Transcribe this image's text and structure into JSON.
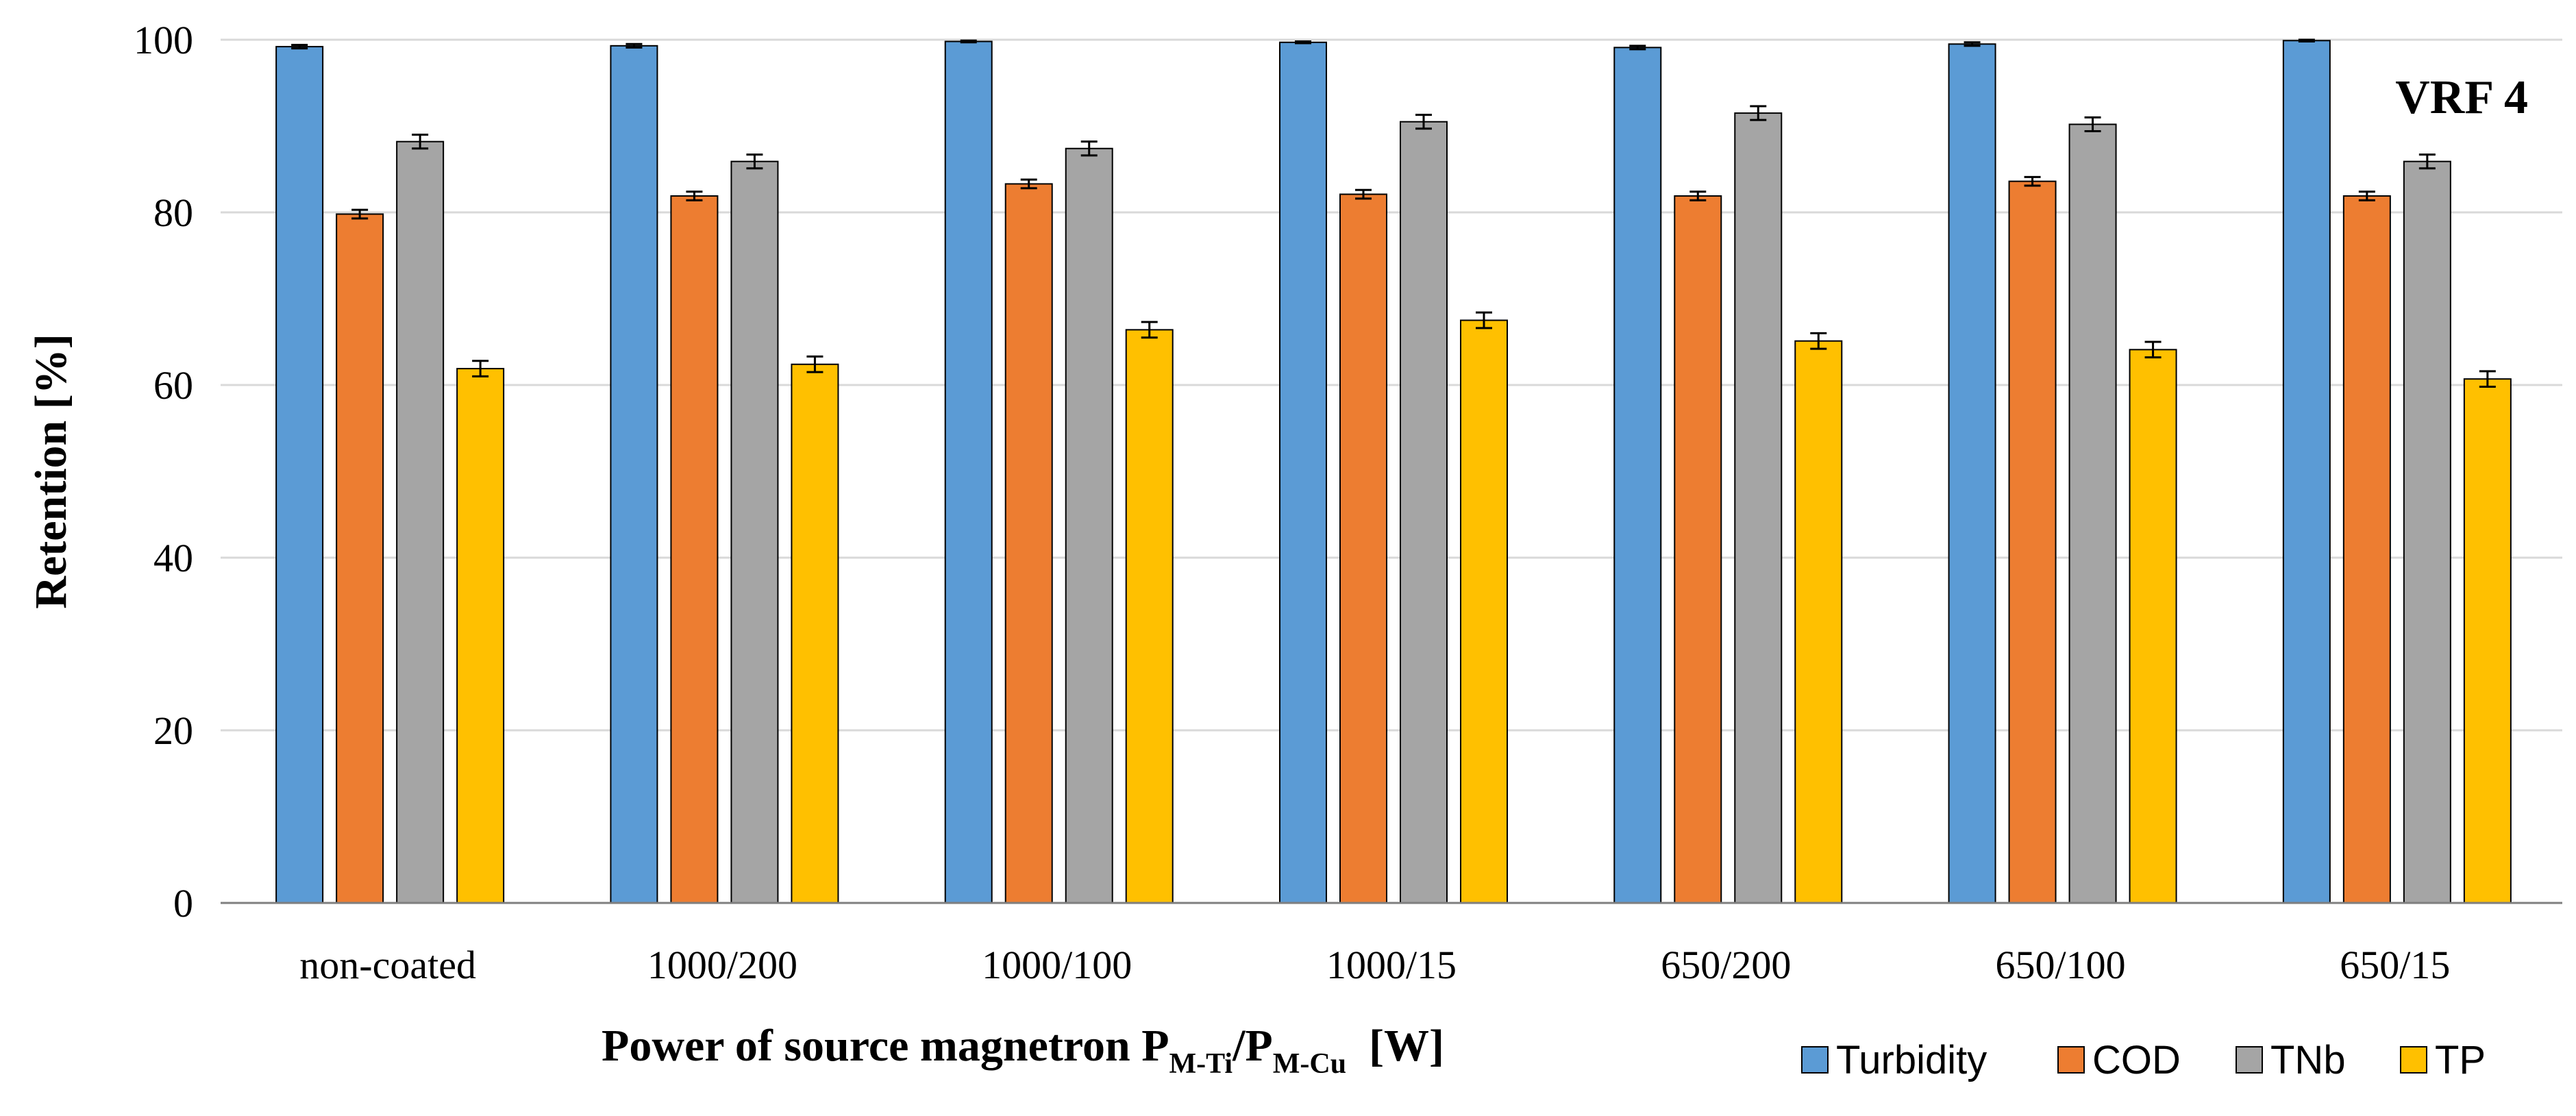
{
  "chart_data": {
    "type": "bar",
    "title": "",
    "annotation": "VRF 4",
    "ylabel": "Retention [%]",
    "xlabel": {
      "prefix": "Power of source magnetron P",
      "sub1": "M-Ti",
      "mid": "/P",
      "sub2": "M-Cu",
      "suffix": "[W]"
    },
    "ylim": [
      0,
      100
    ],
    "yticks": [
      0,
      20,
      40,
      60,
      80,
      100
    ],
    "grid": true,
    "legend_position": "bottom-right",
    "categories": [
      "non-coated",
      "1000/200",
      "1000/100",
      "1000/15",
      "650/200",
      "650/100",
      "650/15"
    ],
    "series": [
      {
        "name": "Turbidity",
        "color": "#5B9BD5",
        "values": [
          99.2,
          99.3,
          99.8,
          99.7,
          99.1,
          99.5,
          99.9
        ],
        "errors": [
          0.2,
          0.2,
          0.1,
          0.1,
          0.2,
          0.2,
          0.1
        ]
      },
      {
        "name": "COD",
        "color": "#ED7D31",
        "values": [
          79.8,
          81.9,
          83.3,
          82.1,
          81.9,
          83.6,
          81.9
        ],
        "errors": [
          0.5,
          0.5,
          0.5,
          0.5,
          0.5,
          0.5,
          0.5
        ]
      },
      {
        "name": "TNb",
        "color": "#A5A5A5",
        "values": [
          88.2,
          85.9,
          87.4,
          90.5,
          91.5,
          90.2,
          85.9
        ],
        "errors": [
          0.8,
          0.8,
          0.8,
          0.8,
          0.8,
          0.8,
          0.8
        ]
      },
      {
        "name": "TP",
        "color": "#FFC000",
        "values": [
          61.9,
          62.4,
          66.4,
          67.5,
          65.1,
          64.1,
          60.7
        ],
        "errors": [
          0.9,
          0.9,
          0.9,
          0.9,
          0.9,
          0.9,
          0.9
        ]
      }
    ]
  }
}
